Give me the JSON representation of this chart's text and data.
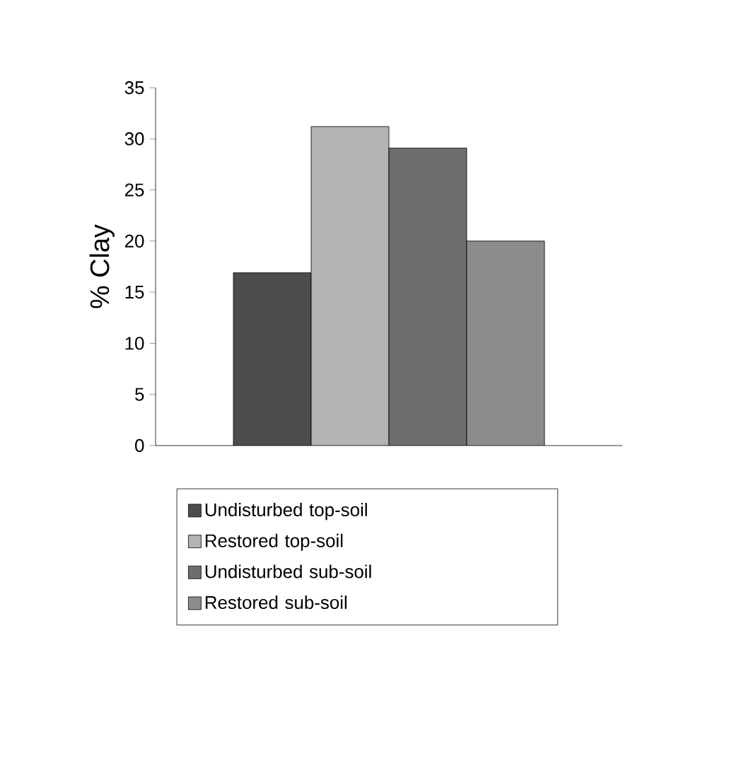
{
  "chart_data": {
    "type": "bar",
    "ylabel": "% Clay",
    "categories": [
      null
    ],
    "series": [
      {
        "name": "Undisturbed top-soil",
        "color": "#4d4d4d",
        "values": [
          16.9
        ]
      },
      {
        "name": "Restored top-soil",
        "color": "#b3b3b3",
        "values": [
          31.2
        ]
      },
      {
        "name": "Undisturbed sub-soil",
        "color": "#6e6e6e",
        "values": [
          29.1
        ]
      },
      {
        "name": "Restored sub-soil",
        "color": "#8c8c8c",
        "values": [
          20
        ]
      }
    ],
    "ylim": [
      0,
      35
    ],
    "yticks": [
      0,
      5,
      10,
      15,
      20,
      25,
      30,
      35
    ],
    "tick_labels": "y",
    "legend": "bottom"
  }
}
